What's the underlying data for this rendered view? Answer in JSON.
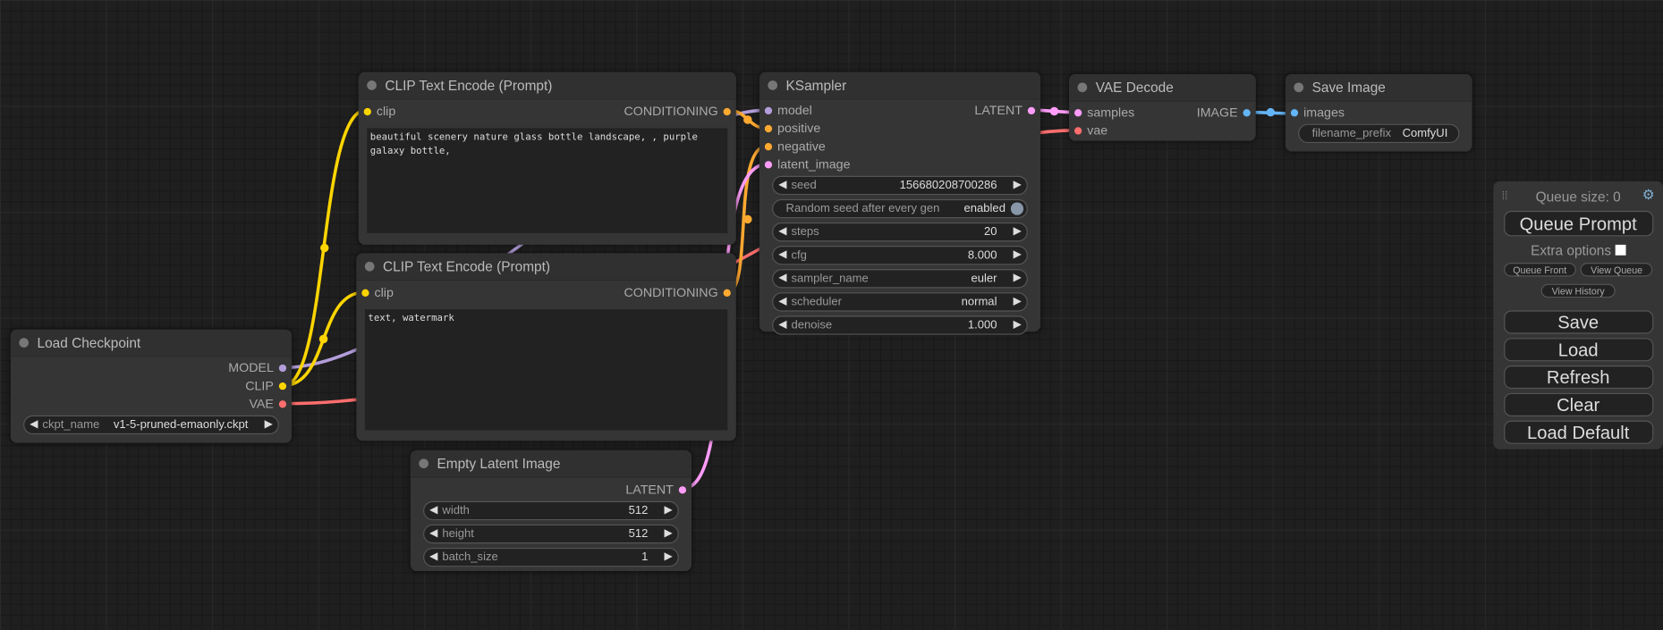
{
  "colors": {
    "model": "#b39ddb",
    "clip": "#ffd500",
    "vae": "#ff6e6e",
    "conditioning": "#ffa931",
    "latent": "#ff9cf9",
    "image": "#64b5f6"
  },
  "nodes": {
    "load_checkpoint": {
      "title": "Load Checkpoint",
      "outputs": [
        "MODEL",
        "CLIP",
        "VAE"
      ],
      "widget": {
        "label": "ckpt_name",
        "value": "v1-5-pruned-emaonly.ckpt"
      }
    },
    "clip_pos": {
      "title": "CLIP Text Encode (Prompt)",
      "input": "clip",
      "output": "CONDITIONING",
      "text": "beautiful scenery nature glass bottle landscape, , purple galaxy bottle,"
    },
    "clip_neg": {
      "title": "CLIP Text Encode (Prompt)",
      "input": "clip",
      "output": "CONDITIONING",
      "text": "text, watermark"
    },
    "empty_latent": {
      "title": "Empty Latent Image",
      "output": "LATENT",
      "widgets": [
        {
          "label": "width",
          "value": "512"
        },
        {
          "label": "height",
          "value": "512"
        },
        {
          "label": "batch_size",
          "value": "1"
        }
      ]
    },
    "ksampler": {
      "title": "KSampler",
      "inputs": [
        "model",
        "positive",
        "negative",
        "latent_image"
      ],
      "output": "LATENT",
      "seed": {
        "label": "seed",
        "value": "156680208700286"
      },
      "toggle": {
        "label": "Random seed after every gen",
        "value": "enabled"
      },
      "widgets": [
        {
          "label": "steps",
          "value": "20"
        },
        {
          "label": "cfg",
          "value": "8.000"
        },
        {
          "label": "sampler_name",
          "value": "euler"
        },
        {
          "label": "scheduler",
          "value": "normal"
        },
        {
          "label": "denoise",
          "value": "1.000"
        }
      ]
    },
    "vae_decode": {
      "title": "VAE Decode",
      "inputs": [
        "samples",
        "vae"
      ],
      "output": "IMAGE"
    },
    "save_image": {
      "title": "Save Image",
      "input": "images",
      "widget": {
        "label": "filename_prefix",
        "value": "ComfyUI"
      }
    }
  },
  "menu": {
    "queue_size": "Queue size: 0",
    "queue_prompt": "Queue Prompt",
    "extra_options": "Extra options",
    "queue_front": "Queue Front",
    "view_queue": "View Queue",
    "view_history": "View History",
    "save": "Save",
    "load": "Load",
    "refresh": "Refresh",
    "clear": "Clear",
    "load_default": "Load Default"
  }
}
